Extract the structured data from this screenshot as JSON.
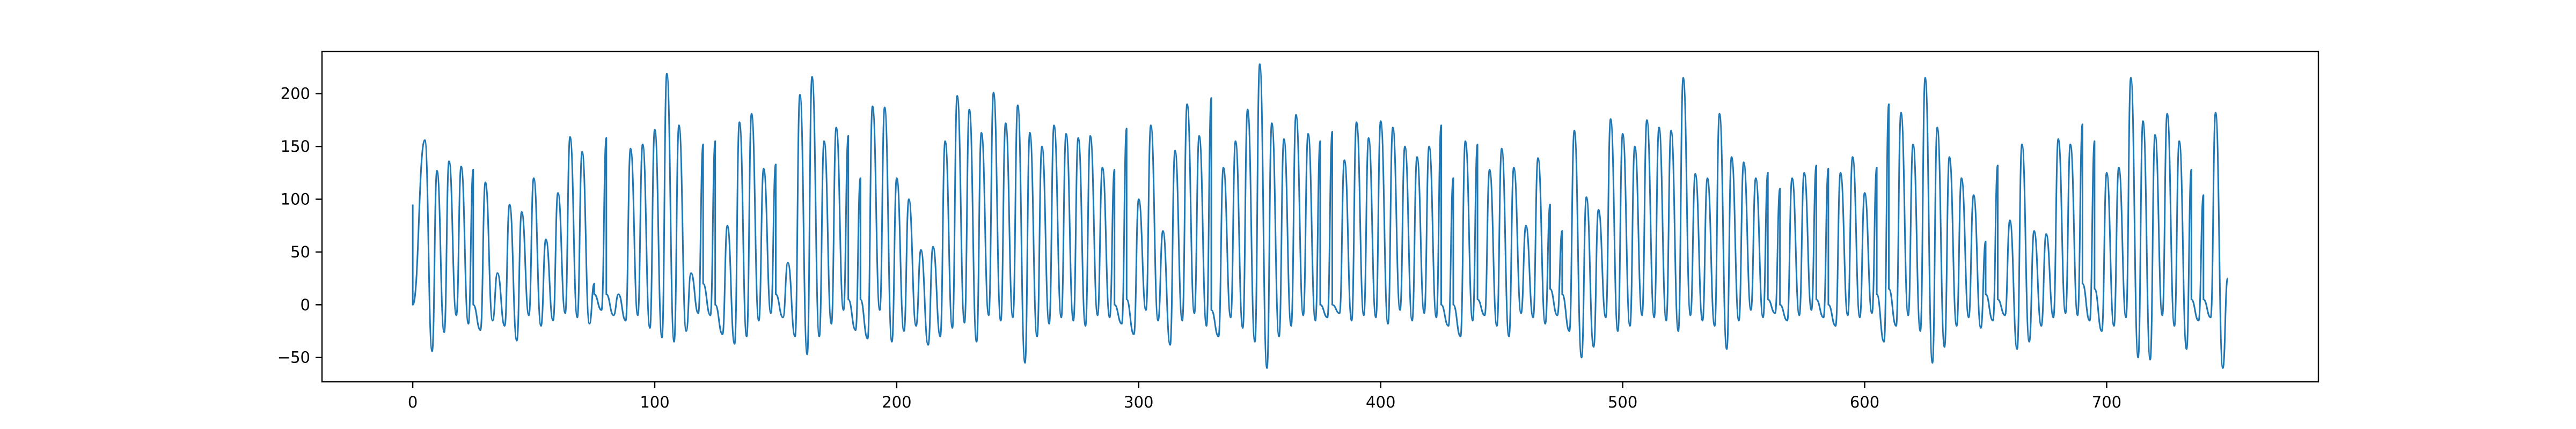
{
  "chart_data": {
    "type": "line",
    "title": "",
    "xlabel": "",
    "ylabel": "",
    "xlim": [
      -37.5,
      787.5
    ],
    "ylim": [
      -73,
      240
    ],
    "xticks": [
      0,
      100,
      200,
      300,
      400,
      500,
      600,
      700
    ],
    "yticks": [
      -50,
      0,
      50,
      100,
      150,
      200
    ],
    "grid": false,
    "legend": "none",
    "colors": {
      "series": "#1f77b4"
    },
    "series": [
      {
        "peaks": [
          [
            0,
            95
          ],
          [
            5,
            156
          ],
          [
            10,
            127
          ],
          [
            15,
            136
          ],
          [
            20,
            131
          ],
          [
            25,
            128
          ],
          [
            30,
            116
          ],
          [
            35,
            30
          ],
          [
            40,
            95
          ],
          [
            45,
            88
          ],
          [
            50,
            120
          ],
          [
            55,
            62
          ],
          [
            60,
            106
          ],
          [
            65,
            159
          ],
          [
            70,
            145
          ],
          [
            75,
            20
          ],
          [
            80,
            158
          ],
          [
            85,
            10
          ],
          [
            90,
            148
          ],
          [
            95,
            152
          ],
          [
            100,
            166
          ],
          [
            105,
            219
          ],
          [
            110,
            170
          ],
          [
            115,
            30
          ],
          [
            120,
            152
          ],
          [
            125,
            155
          ],
          [
            130,
            75
          ],
          [
            135,
            173
          ],
          [
            140,
            181
          ],
          [
            145,
            129
          ],
          [
            150,
            133
          ],
          [
            155,
            40
          ],
          [
            160,
            199
          ],
          [
            165,
            216
          ],
          [
            170,
            155
          ],
          [
            175,
            168
          ],
          [
            180,
            160
          ],
          [
            185,
            120
          ],
          [
            190,
            188
          ],
          [
            195,
            187
          ],
          [
            200,
            120
          ],
          [
            205,
            100
          ],
          [
            210,
            52
          ],
          [
            215,
            55
          ],
          [
            220,
            155
          ],
          [
            225,
            198
          ],
          [
            230,
            185
          ],
          [
            235,
            163
          ],
          [
            240,
            201
          ],
          [
            245,
            172
          ],
          [
            250,
            189
          ],
          [
            255,
            163
          ],
          [
            260,
            150
          ],
          [
            265,
            170
          ],
          [
            270,
            162
          ],
          [
            275,
            158
          ],
          [
            280,
            160
          ],
          [
            285,
            130
          ],
          [
            290,
            128
          ],
          [
            295,
            167
          ],
          [
            300,
            100
          ],
          [
            305,
            170
          ],
          [
            310,
            70
          ],
          [
            315,
            146
          ],
          [
            320,
            190
          ],
          [
            325,
            160
          ],
          [
            330,
            196
          ],
          [
            335,
            130
          ],
          [
            340,
            155
          ],
          [
            345,
            185
          ],
          [
            350,
            228
          ],
          [
            355,
            172
          ],
          [
            360,
            157
          ],
          [
            365,
            180
          ],
          [
            370,
            162
          ],
          [
            375,
            155
          ],
          [
            380,
            164
          ],
          [
            385,
            137
          ],
          [
            390,
            173
          ],
          [
            395,
            158
          ],
          [
            400,
            174
          ],
          [
            405,
            168
          ],
          [
            410,
            150
          ],
          [
            415,
            140
          ],
          [
            420,
            150
          ],
          [
            425,
            170
          ],
          [
            430,
            120
          ],
          [
            435,
            155
          ],
          [
            440,
            152
          ],
          [
            445,
            128
          ],
          [
            450,
            148
          ],
          [
            455,
            130
          ],
          [
            460,
            75
          ],
          [
            465,
            139
          ],
          [
            470,
            95
          ],
          [
            475,
            70
          ],
          [
            480,
            165
          ],
          [
            485,
            102
          ],
          [
            490,
            90
          ],
          [
            495,
            176
          ],
          [
            500,
            162
          ],
          [
            505,
            150
          ],
          [
            510,
            175
          ],
          [
            515,
            168
          ],
          [
            520,
            165
          ],
          [
            525,
            215
          ],
          [
            530,
            124
          ],
          [
            535,
            120
          ],
          [
            540,
            181
          ],
          [
            545,
            140
          ],
          [
            550,
            135
          ],
          [
            555,
            120
          ],
          [
            560,
            125
          ],
          [
            565,
            110
          ],
          [
            570,
            120
          ],
          [
            575,
            125
          ],
          [
            580,
            132
          ],
          [
            585,
            129
          ],
          [
            590,
            125
          ],
          [
            595,
            140
          ],
          [
            600,
            106
          ],
          [
            605,
            130
          ],
          [
            610,
            190
          ],
          [
            615,
            182
          ],
          [
            620,
            152
          ],
          [
            625,
            215
          ],
          [
            630,
            168
          ],
          [
            635,
            140
          ],
          [
            640,
            120
          ],
          [
            645,
            104
          ],
          [
            650,
            60
          ],
          [
            655,
            132
          ],
          [
            660,
            80
          ],
          [
            665,
            152
          ],
          [
            670,
            70
          ],
          [
            675,
            67
          ],
          [
            680,
            157
          ],
          [
            685,
            152
          ],
          [
            690,
            171
          ],
          [
            695,
            155
          ],
          [
            700,
            125
          ],
          [
            705,
            130
          ],
          [
            710,
            215
          ],
          [
            715,
            174
          ],
          [
            720,
            161
          ],
          [
            725,
            181
          ],
          [
            730,
            155
          ],
          [
            735,
            128
          ],
          [
            740,
            104
          ],
          [
            745,
            182
          ],
          [
            750,
            25
          ]
        ],
        "troughs": [
          [
            8,
            -44
          ],
          [
            13,
            -26
          ],
          [
            18,
            -10
          ],
          [
            23,
            -18
          ],
          [
            28,
            -24
          ],
          [
            33,
            -15
          ],
          [
            38,
            -20
          ],
          [
            43,
            -34
          ],
          [
            48,
            -10
          ],
          [
            53,
            -20
          ],
          [
            58,
            -15
          ],
          [
            63,
            -8
          ],
          [
            68,
            -12
          ],
          [
            73,
            -18
          ],
          [
            78,
            -5
          ],
          [
            83,
            -10
          ],
          [
            88,
            -15
          ],
          [
            93,
            -10
          ],
          [
            98,
            -22
          ],
          [
            103,
            -31
          ],
          [
            108,
            -35
          ],
          [
            113,
            -25
          ],
          [
            118,
            -8
          ],
          [
            123,
            -10
          ],
          [
            128,
            -28
          ],
          [
            133,
            -37
          ],
          [
            138,
            -30
          ],
          [
            143,
            -15
          ],
          [
            148,
            -8
          ],
          [
            153,
            -12
          ],
          [
            158,
            -30
          ],
          [
            163,
            -47
          ],
          [
            168,
            -30
          ],
          [
            173,
            -18
          ],
          [
            178,
            -5
          ],
          [
            183,
            -24
          ],
          [
            188,
            -32
          ],
          [
            193,
            -5
          ],
          [
            198,
            -35
          ],
          [
            203,
            -25
          ],
          [
            208,
            -20
          ],
          [
            213,
            -38
          ],
          [
            218,
            -30
          ],
          [
            223,
            -22
          ],
          [
            228,
            -17
          ],
          [
            233,
            -35
          ],
          [
            238,
            -10
          ],
          [
            243,
            -15
          ],
          [
            248,
            -12
          ],
          [
            253,
            -55
          ],
          [
            258,
            -30
          ],
          [
            263,
            -18
          ],
          [
            268,
            -12
          ],
          [
            273,
            -15
          ],
          [
            278,
            -20
          ],
          [
            283,
            -10
          ],
          [
            288,
            -12
          ],
          [
            293,
            -18
          ],
          [
            298,
            -28
          ],
          [
            303,
            -5
          ],
          [
            308,
            -15
          ],
          [
            313,
            -38
          ],
          [
            318,
            -15
          ],
          [
            323,
            -8
          ],
          [
            328,
            -20
          ],
          [
            333,
            -30
          ],
          [
            338,
            -12
          ],
          [
            343,
            -22
          ],
          [
            348,
            -35
          ],
          [
            353,
            -60
          ],
          [
            358,
            -30
          ],
          [
            363,
            -20
          ],
          [
            368,
            -10
          ],
          [
            373,
            -15
          ],
          [
            378,
            -12
          ],
          [
            383,
            -8
          ],
          [
            388,
            -15
          ],
          [
            393,
            -10
          ],
          [
            398,
            -12
          ],
          [
            403,
            -18
          ],
          [
            408,
            -5
          ],
          [
            413,
            -15
          ],
          [
            418,
            -8
          ],
          [
            423,
            -12
          ],
          [
            428,
            -20
          ],
          [
            433,
            -30
          ],
          [
            438,
            -15
          ],
          [
            443,
            -10
          ],
          [
            448,
            -20
          ],
          [
            453,
            -30
          ],
          [
            458,
            -8
          ],
          [
            463,
            -12
          ],
          [
            468,
            -18
          ],
          [
            473,
            -10
          ],
          [
            478,
            -25
          ],
          [
            483,
            -50
          ],
          [
            488,
            -40
          ],
          [
            493,
            -12
          ],
          [
            498,
            -25
          ],
          [
            503,
            -20
          ],
          [
            508,
            -10
          ],
          [
            513,
            -12
          ],
          [
            518,
            -15
          ],
          [
            523,
            -25
          ],
          [
            528,
            -10
          ],
          [
            533,
            -15
          ],
          [
            538,
            -20
          ],
          [
            543,
            -42
          ],
          [
            548,
            -15
          ],
          [
            553,
            -5
          ],
          [
            558,
            -12
          ],
          [
            563,
            -8
          ],
          [
            568,
            -15
          ],
          [
            573,
            -10
          ],
          [
            578,
            -5
          ],
          [
            583,
            -12
          ],
          [
            588,
            -20
          ],
          [
            593,
            -10
          ],
          [
            598,
            -12
          ],
          [
            603,
            -8
          ],
          [
            608,
            -35
          ],
          [
            613,
            -20
          ],
          [
            618,
            -10
          ],
          [
            623,
            -25
          ],
          [
            628,
            -55
          ],
          [
            633,
            -40
          ],
          [
            638,
            -20
          ],
          [
            643,
            -12
          ],
          [
            648,
            -22
          ],
          [
            653,
            -15
          ],
          [
            658,
            -10
          ],
          [
            663,
            -42
          ],
          [
            668,
            -35
          ],
          [
            673,
            -20
          ],
          [
            678,
            -12
          ],
          [
            683,
            -8
          ],
          [
            688,
            -10
          ],
          [
            693,
            -15
          ],
          [
            698,
            -25
          ],
          [
            703,
            -20
          ],
          [
            708,
            -12
          ],
          [
            713,
            -50
          ],
          [
            718,
            -52
          ],
          [
            723,
            -10
          ],
          [
            728,
            -20
          ],
          [
            733,
            -42
          ],
          [
            738,
            -15
          ],
          [
            743,
            -12
          ],
          [
            748,
            -60
          ]
        ],
        "plateaus": [
          [
            0,
            0
          ],
          [
            25,
            0
          ],
          [
            75,
            10
          ],
          [
            80,
            10
          ],
          [
            120,
            20
          ],
          [
            125,
            0
          ],
          [
            150,
            10
          ],
          [
            180,
            5
          ],
          [
            185,
            5
          ],
          [
            290,
            0
          ],
          [
            295,
            5
          ],
          [
            330,
            -5
          ],
          [
            375,
            0
          ],
          [
            380,
            0
          ],
          [
            425,
            0
          ],
          [
            430,
            0
          ],
          [
            440,
            5
          ],
          [
            470,
            15
          ],
          [
            475,
            10
          ],
          [
            560,
            5
          ],
          [
            565,
            0
          ],
          [
            580,
            5
          ],
          [
            585,
            0
          ],
          [
            605,
            10
          ],
          [
            610,
            15
          ],
          [
            650,
            10
          ],
          [
            655,
            5
          ],
          [
            690,
            20
          ],
          [
            695,
            15
          ],
          [
            735,
            5
          ],
          [
            740,
            5
          ]
        ]
      }
    ]
  }
}
